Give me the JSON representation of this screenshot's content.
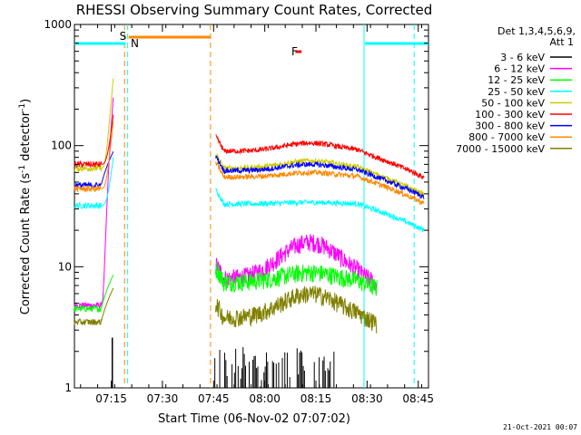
{
  "chart_data": {
    "type": "line",
    "title": "RHESSI Observing Summary Count Rates, Corrected",
    "xlabel": "Start Time (06-Nov-02 07:07:02)",
    "ylabel_main": "Corrected Count Rate (s",
    "ylabel_sup1": "-1",
    "ylabel_mid": " detector",
    "ylabel_sup2": "-1",
    "ylabel_end": ")",
    "y_scale": "log",
    "ylim": [
      1,
      1000
    ],
    "xlim_minutes": [
      7.07,
      8.8
    ],
    "x_ticks": [
      {
        "label": "07:15",
        "t": 7.25
      },
      {
        "label": "07:30",
        "t": 7.5
      },
      {
        "label": "07:45",
        "t": 7.75
      },
      {
        "label": "08:00",
        "t": 8.0
      },
      {
        "label": "08:15",
        "t": 8.25
      },
      {
        "label": "08:30",
        "t": 8.5
      },
      {
        "label": "08:45",
        "t": 8.75
      }
    ],
    "y_ticks": [
      {
        "label": "1",
        "v": 1
      },
      {
        "label": "10",
        "v": 10
      },
      {
        "label": "100",
        "v": 100
      },
      {
        "label": "1000",
        "v": 1000
      }
    ],
    "legend_header": [
      "Det 1,3,4,5,6,9,",
      "Att 1"
    ],
    "series": [
      {
        "name": "3 - 6 keV",
        "color": "#000000"
      },
      {
        "name": "6 - 12 keV",
        "color": "#ff00ff"
      },
      {
        "name": "12 - 25 keV",
        "color": "#00ff00"
      },
      {
        "name": "25 - 50 keV",
        "color": "#00ffff"
      },
      {
        "name": "50 - 100 keV",
        "color": "#cccc00"
      },
      {
        "name": "100 - 300 keV",
        "color": "#ff0000"
      },
      {
        "name": "300 - 800 keV",
        "color": "#0000ff"
      },
      {
        "name": "800 - 7000 keV",
        "color": "#ff8800"
      },
      {
        "name": "7000 - 15000 keV",
        "color": "#808000"
      }
    ],
    "annotations": {
      "saa_label": "S",
      "night_label": "N",
      "flare_label": "F",
      "saa_color": "#ff8800",
      "night_color": "#00ffff",
      "flare_color": "#ff0000"
    },
    "footer": "21-Oct-2021 00:07"
  }
}
